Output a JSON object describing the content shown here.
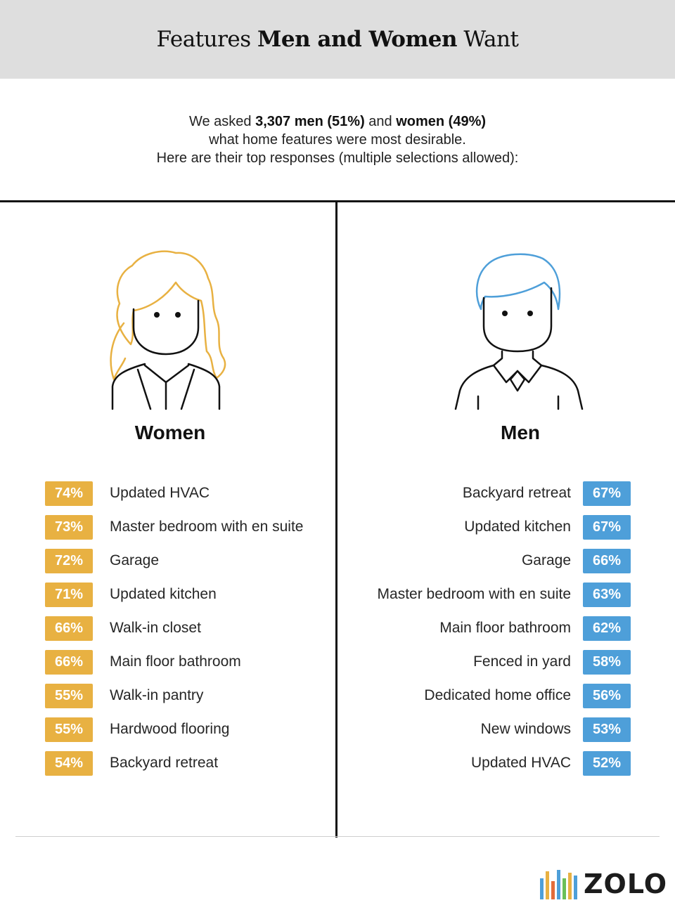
{
  "header": {
    "title_part1": "Features ",
    "title_bold": "Men and Women",
    "title_part2": " Want"
  },
  "intro": {
    "line1_a": "We asked ",
    "line1_b": "3,307 men (51%)",
    "line1_c": " and ",
    "line1_d": "women (49%)",
    "line2": "what home features were most desirable.",
    "line3": "Here are their top responses (multiple selections allowed):"
  },
  "colors": {
    "women_accent": "#e8b142",
    "men_accent": "#4e9fd9",
    "header_bg": "#dedede"
  },
  "women": {
    "heading": "Women",
    "icon": "woman-avatar-icon",
    "items": [
      {
        "pct": "74%",
        "label": "Updated HVAC"
      },
      {
        "pct": "73%",
        "label": "Master bedroom with en suite"
      },
      {
        "pct": "72%",
        "label": "Garage"
      },
      {
        "pct": "71%",
        "label": "Updated kitchen"
      },
      {
        "pct": "66%",
        "label": "Walk-in closet"
      },
      {
        "pct": "66%",
        "label": "Main floor bathroom"
      },
      {
        "pct": "55%",
        "label": "Walk-in pantry"
      },
      {
        "pct": "55%",
        "label": "Hardwood flooring"
      },
      {
        "pct": "54%",
        "label": "Backyard retreat"
      }
    ]
  },
  "men": {
    "heading": "Men",
    "icon": "man-avatar-icon",
    "items": [
      {
        "pct": "67%",
        "label": "Backyard retreat"
      },
      {
        "pct": "67%",
        "label": "Updated kitchen"
      },
      {
        "pct": "66%",
        "label": "Garage"
      },
      {
        "pct": "63%",
        "label": "Master bedroom with en suite"
      },
      {
        "pct": "62%",
        "label": "Main floor bathroom"
      },
      {
        "pct": "58%",
        "label": "Fenced in yard"
      },
      {
        "pct": "56%",
        "label": "Dedicated home office"
      },
      {
        "pct": "53%",
        "label": "New windows"
      },
      {
        "pct": "52%",
        "label": "Updated HVAC"
      }
    ]
  },
  "footer": {
    "logo_text": "ZOLO",
    "logo_icon": "zolo-bars-logo-icon",
    "logo_bar_colors": [
      "#e8b142",
      "#4e9fd9",
      "#e36c3a",
      "#4e9fd9",
      "#6bbf59",
      "#e8b142",
      "#4e9fd9"
    ]
  }
}
